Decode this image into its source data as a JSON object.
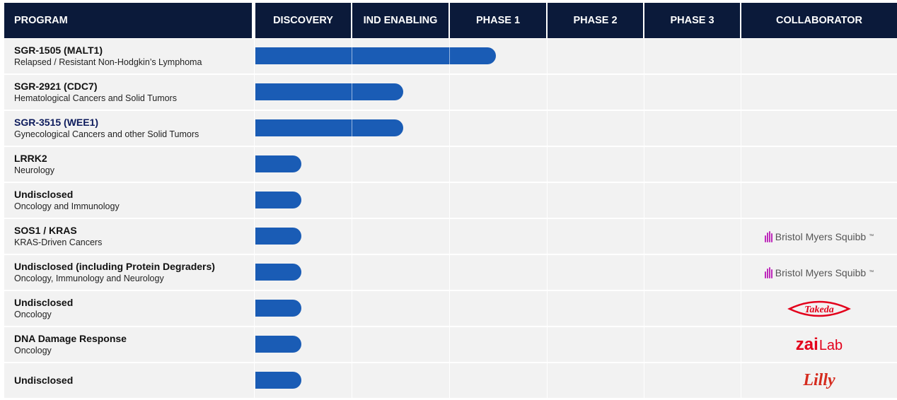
{
  "header": {
    "program": "PROGRAM",
    "collaborator": "COLLABORATOR"
  },
  "chart_data": {
    "type": "bar",
    "orientation": "horizontal",
    "stages": [
      "DISCOVERY",
      "IND ENABLING",
      "PHASE 1",
      "PHASE 2",
      "PHASE 3"
    ],
    "rows": [
      {
        "name": "SGR-1505 (MALT1)",
        "indication": "Relapsed / Resistant Non-Hodgkin’s Lymphoma",
        "progress_stages": 2.5,
        "collaborator": ""
      },
      {
        "name": "SGR-2921 (CDC7)",
        "indication": "Hematological Cancers and Solid Tumors",
        "progress_stages": 1.55,
        "collaborator": ""
      },
      {
        "name": "SGR-3515 (WEE1)",
        "indication": "Gynecological Cancers and other Solid Tumors",
        "progress_stages": 1.55,
        "collaborator": ""
      },
      {
        "name": "LRRK2",
        "indication": "Neurology",
        "progress_stages": 0.5,
        "collaborator": ""
      },
      {
        "name": "Undisclosed",
        "indication": "Oncology and Immunology",
        "progress_stages": 0.5,
        "collaborator": ""
      },
      {
        "name": "SOS1 / KRAS",
        "indication": "KRAS-Driven Cancers",
        "progress_stages": 0.5,
        "collaborator": "Bristol Myers Squibb"
      },
      {
        "name": "Undisclosed (including Protein Degraders)",
        "indication": "Oncology, Immunology and Neurology",
        "progress_stages": 0.5,
        "collaborator": "Bristol Myers Squibb"
      },
      {
        "name": "Undisclosed",
        "indication": "Oncology",
        "progress_stages": 0.5,
        "collaborator": "Takeda"
      },
      {
        "name": "DNA Damage Response",
        "indication": "Oncology",
        "progress_stages": 0.5,
        "collaborator": "zai lab"
      },
      {
        "name": "Undisclosed",
        "indication": "",
        "progress_stages": 0.5,
        "collaborator": "Lilly"
      }
    ],
    "colors": {
      "header": "#0b1a3a",
      "bar": "#1a5cb5",
      "row": "#f2f2f2"
    }
  },
  "logos": {
    "bms_text": "Bristol Myers Squibb",
    "bms_tm": "™",
    "takeda": "Takeda",
    "zai": "zai",
    "lab": "Lab",
    "lilly": "Lilly"
  }
}
